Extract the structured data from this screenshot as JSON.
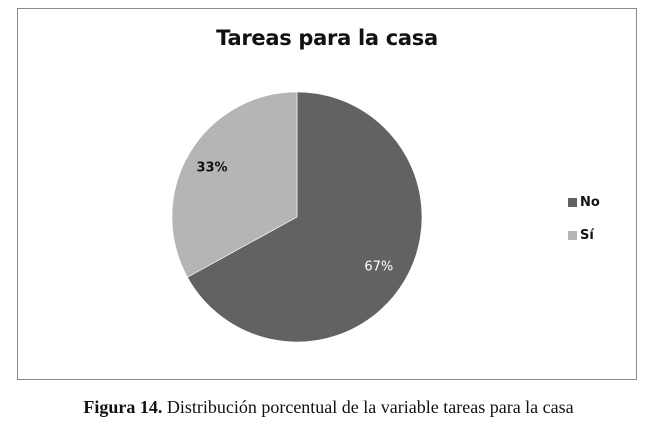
{
  "chart_data": {
    "type": "pie",
    "title": "Tareas para la casa",
    "categories": [
      "No",
      "Sí"
    ],
    "values": [
      67,
      33
    ],
    "data_labels": [
      "67%",
      "33%"
    ],
    "colors": [
      "#616361",
      "#b4b5b4"
    ],
    "legend_position": "right"
  },
  "caption": {
    "label": "Figura 14.",
    "text": " Distribución porcentual de la variable tareas para la casa"
  }
}
